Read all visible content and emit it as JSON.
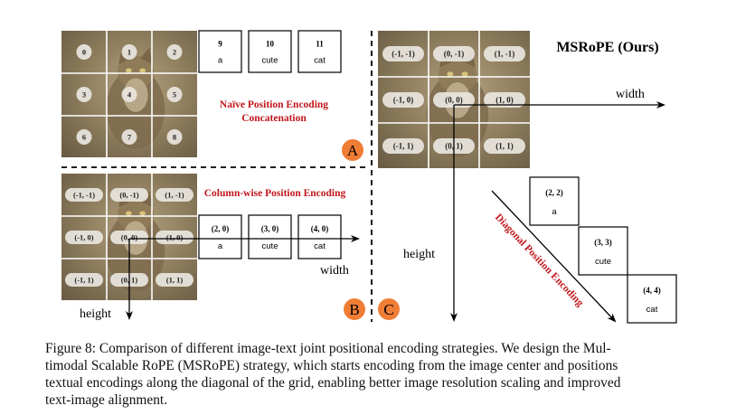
{
  "panel_a": {
    "badge": "A",
    "title_line1": "Naïve Position Encoding",
    "title_line2": "Concatenation",
    "grid_labels": [
      "0",
      "1",
      "2",
      "3",
      "4",
      "5",
      "6",
      "7",
      "8"
    ],
    "tokens": [
      {
        "index": "9",
        "text": "a"
      },
      {
        "index": "10",
        "text": "cute"
      },
      {
        "index": "11",
        "text": "cat"
      }
    ]
  },
  "panel_b": {
    "badge": "B",
    "title": "Column-wise Position Encoding",
    "grid_labels": [
      "(-1, -1)",
      "(0, -1)",
      "(1, -1)",
      "(-1, 0)",
      "(0, 0)",
      "(1, 0)",
      "(-1, 1)",
      "(0, 1)",
      "(1, 1)"
    ],
    "tokens": [
      {
        "index": "(2, 0)",
        "text": "a"
      },
      {
        "index": "(3, 0)",
        "text": "cute"
      },
      {
        "index": "(4, 0)",
        "text": "cat"
      }
    ],
    "width_label": "width",
    "height_label": "height"
  },
  "panel_c": {
    "badge": "C",
    "title": "MSRoPE (Ours)",
    "grid_labels": [
      "(-1, -1)",
      "(0, -1)",
      "(1, -1)",
      "(-1, 0)",
      "(0, 0)",
      "(1, 0)",
      "(-1, 1)",
      "(0, 1)",
      "(1, 1)"
    ],
    "tokens": [
      {
        "index": "(2, 2)",
        "text": "a"
      },
      {
        "index": "(3, 3)",
        "text": "cute"
      },
      {
        "index": "(4, 4)",
        "text": "cat"
      }
    ],
    "width_label": "width",
    "height_label": "height",
    "diagonal_label": "Diagonal Position Encoding"
  },
  "caption_lines": [
    "Figure 8: Comparison of different image-text joint positional encoding strategies. We design the Mul-",
    "timodal Scalable RoPE (MSRoPE) strategy, which starts encoding from the image center and positions",
    "textual encodings along the diagonal of the grid, enabling better image resolution scaling and improved",
    "text-image alignment."
  ],
  "colors": {
    "red_title": "#c0161c",
    "badge_orange": "#f07d35",
    "cat_bg": "#8a7a5c",
    "label_pill": "#e9e6e0"
  }
}
